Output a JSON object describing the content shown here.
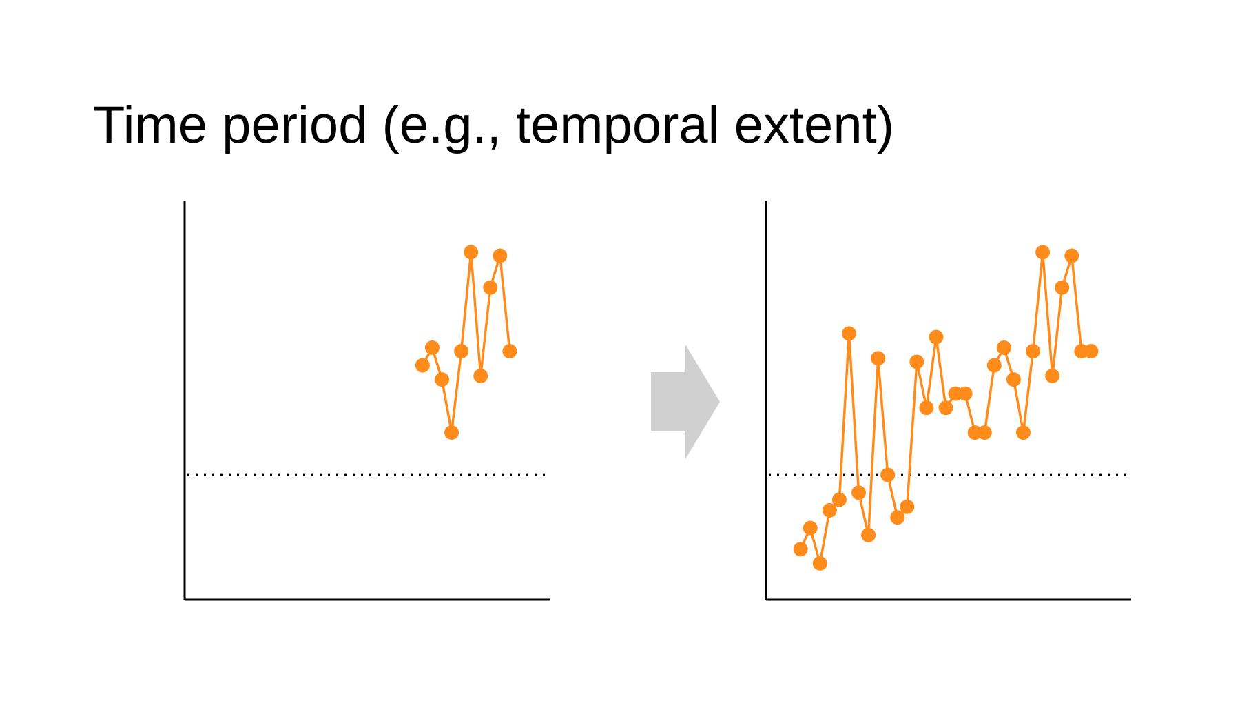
{
  "title": "Time period (e.g., temporal extent)",
  "colors": {
    "series": "#FF8C1A",
    "axis": "#000000",
    "threshold": "#000000",
    "arrow": "#D0D0D0"
  },
  "icons": {
    "arrow": "right-arrow-icon"
  },
  "chart_data": [
    {
      "type": "line",
      "xlim": [
        0,
        35
      ],
      "ylim": [
        0,
        100
      ],
      "threshold": 30,
      "grid": false,
      "x": [
        24,
        25,
        26,
        27,
        28,
        29,
        30,
        31,
        32,
        33
      ],
      "y": [
        61,
        66,
        57,
        42,
        65,
        93,
        58,
        83,
        92,
        65
      ]
    },
    {
      "type": "line",
      "xlim": [
        0,
        35
      ],
      "ylim": [
        0,
        100
      ],
      "threshold": 30,
      "grid": false,
      "x": [
        3,
        4,
        5,
        6,
        7,
        8,
        9,
        10,
        11,
        12,
        13,
        14,
        15,
        16,
        17,
        18,
        19,
        20,
        21,
        22,
        23,
        24,
        25,
        26,
        27,
        28,
        29,
        30,
        31,
        32,
        33
      ],
      "y": [
        9,
        15,
        5,
        20,
        23,
        70,
        25,
        13,
        63,
        30,
        18,
        21,
        62,
        49,
        69,
        49,
        53,
        53,
        42,
        42,
        61,
        66,
        57,
        42,
        65,
        93,
        58,
        83,
        92,
        65,
        65
      ]
    }
  ]
}
